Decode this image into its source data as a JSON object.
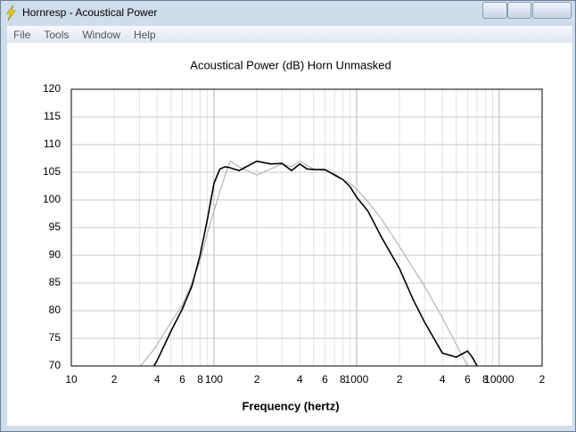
{
  "window": {
    "title": "Hornresp - Acoustical Power",
    "menu": [
      "File",
      "Tools",
      "Window",
      "Help"
    ]
  },
  "chart_data": {
    "type": "line",
    "title": "Acoustical Power (dB)   Horn   Unmasked",
    "xlabel": "Frequency (hertz)",
    "xscale": "log",
    "xlim": [
      10,
      20000
    ],
    "ylim": [
      70,
      120
    ],
    "xticks": [
      10,
      {
        "value": 20,
        "label": "2"
      },
      {
        "value": 40,
        "label": "4"
      },
      {
        "value": 60,
        "label": "6"
      },
      {
        "value": 80,
        "label": "8"
      },
      100,
      {
        "value": 200,
        "label": "2"
      },
      {
        "value": 400,
        "label": "4"
      },
      {
        "value": 600,
        "label": "6"
      },
      {
        "value": 800,
        "label": "8"
      },
      1000,
      {
        "value": 2000,
        "label": "2"
      },
      {
        "value": 4000,
        "label": "4"
      },
      {
        "value": 6000,
        "label": "6"
      },
      {
        "value": 8000,
        "label": "8"
      },
      10000,
      {
        "value": 20000,
        "label": "2"
      }
    ],
    "minor_xgrid": [
      30,
      50,
      70,
      90,
      300,
      500,
      700,
      900,
      3000,
      5000,
      7000,
      9000
    ],
    "yticks": [
      70,
      75,
      80,
      85,
      90,
      95,
      100,
      105,
      110,
      115,
      120
    ],
    "grid": true,
    "x": [
      30.5,
      38,
      40,
      50,
      60,
      70,
      80,
      90,
      100,
      110,
      120,
      130,
      150,
      200,
      250,
      300,
      350,
      400,
      450,
      500,
      600,
      700,
      800,
      900,
      1000,
      1200,
      1500,
      2000,
      2500,
      3000,
      4000,
      5000,
      6000,
      6500,
      7000
    ],
    "series": [
      {
        "color": "#b0b0b0",
        "values": [
          70,
          73,
          73.9,
          77.9,
          81,
          85,
          89,
          94,
          98,
          101.5,
          104.5,
          107,
          106,
          104.5,
          105.6,
          106.5,
          106,
          107,
          106.2,
          105.6,
          105.3,
          104.8,
          103.7,
          103,
          102,
          99.7,
          96.5,
          91.6,
          87.6,
          84.4,
          78.7,
          73.9,
          70,
          null,
          null
        ]
      },
      {
        "color": "#000000",
        "values": [
          null,
          70,
          71,
          76.3,
          80.3,
          84.4,
          90,
          96.5,
          103,
          105.6,
          106,
          105.8,
          105.3,
          107,
          106.5,
          106.6,
          105.3,
          106.5,
          105.6,
          105.5,
          105.5,
          104.5,
          103.7,
          102.4,
          100.5,
          98,
          93.2,
          87.6,
          81.9,
          77.9,
          72.3,
          71.6,
          72.7,
          71.5,
          70
        ]
      }
    ]
  }
}
